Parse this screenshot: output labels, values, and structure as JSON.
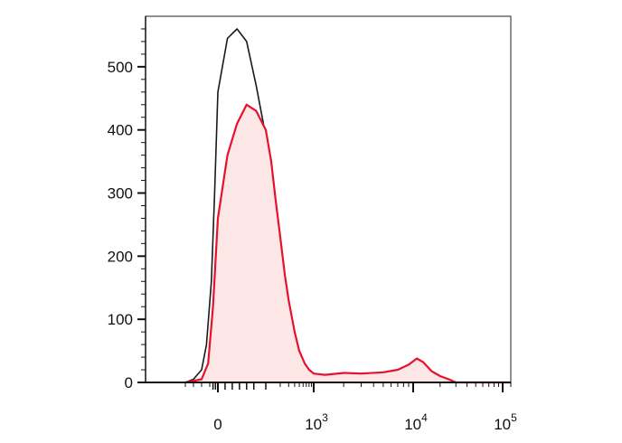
{
  "chart_data": {
    "type": "area",
    "title": "",
    "xlabel": "",
    "ylabel": "",
    "x_scale": "biexponential",
    "xlim": [
      -200,
      200000
    ],
    "ylim": [
      0,
      580
    ],
    "grid": false,
    "legend": "none",
    "y_ticks": [
      {
        "value": 0,
        "label": "0"
      },
      {
        "value": 100,
        "label": "100"
      },
      {
        "value": 200,
        "label": "200"
      },
      {
        "value": 300,
        "label": "300"
      },
      {
        "value": 400,
        "label": "400"
      },
      {
        "value": 500,
        "label": "500"
      }
    ],
    "x_ticks": [
      {
        "value": 0,
        "base": "0",
        "exp": ""
      },
      {
        "value": 1000,
        "base": "10",
        "exp": "3"
      },
      {
        "value": 10000,
        "base": "10",
        "exp": "4"
      },
      {
        "value": 100000,
        "base": "10",
        "exp": "5"
      }
    ],
    "series": [
      {
        "color": "#1a1a1a",
        "filled": false,
        "x": [
          -200,
          -150,
          -100,
          -70,
          -40,
          -20,
          0,
          20,
          40,
          60,
          80,
          100,
          120,
          150,
          180,
          220,
          270,
          330,
          400,
          500,
          600,
          700,
          850,
          1000,
          1500,
          2000,
          5000,
          20000,
          200000
        ],
        "y": [
          0,
          5,
          20,
          60,
          160,
          300,
          460,
          545,
          560,
          540,
          470,
          390,
          330,
          260,
          200,
          150,
          110,
          80,
          55,
          35,
          22,
          12,
          5,
          2,
          1,
          0,
          0,
          0,
          0
        ]
      },
      {
        "color": "#e8112d",
        "fill": "#fde6e6",
        "filled": true,
        "x": [
          -200,
          -100,
          -60,
          -30,
          0,
          20,
          40,
          60,
          80,
          100,
          130,
          160,
          200,
          250,
          300,
          400,
          500,
          650,
          800,
          1000,
          1300,
          2000,
          3000,
          5000,
          7000,
          9000,
          11000,
          13000,
          16000,
          20000,
          25000,
          30000,
          200000
        ],
        "y": [
          0,
          5,
          30,
          120,
          260,
          360,
          410,
          440,
          430,
          400,
          350,
          290,
          230,
          170,
          130,
          80,
          50,
          30,
          20,
          14,
          12,
          15,
          14,
          16,
          20,
          28,
          38,
          32,
          18,
          10,
          5,
          0,
          0
        ]
      }
    ]
  }
}
